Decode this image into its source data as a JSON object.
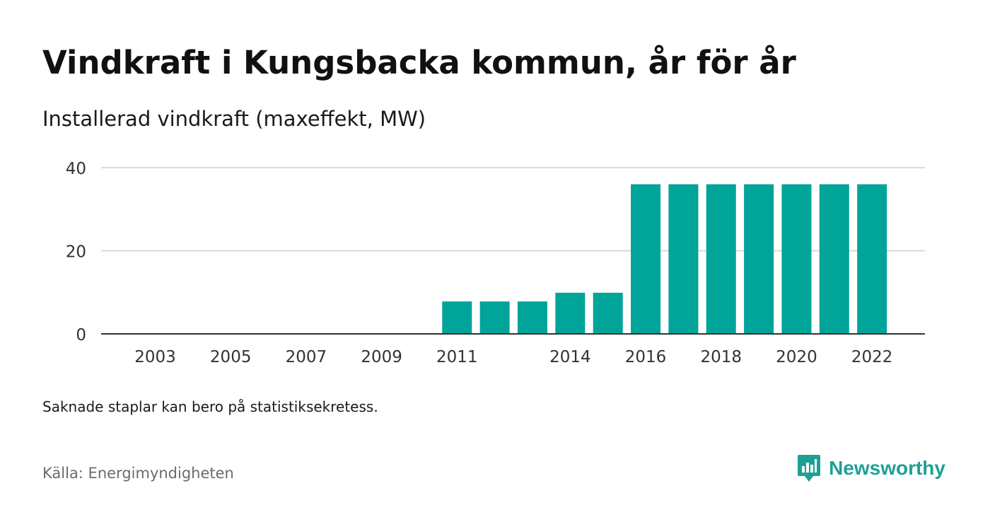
{
  "title": "Vindkraft i Kungsbacka kommun, år för år",
  "subtitle": "Installerad vindkraft (maxeffekt, MW)",
  "note": "Saknade staplar kan bero på statistiksekretess.",
  "source": "Källa: Energimyndigheten",
  "brand": {
    "name": "Newsworthy",
    "icon": "newsworthy-logo-icon",
    "color": "#1fa096"
  },
  "chart_data": {
    "type": "bar",
    "title": "",
    "xlabel": "",
    "ylabel": "",
    "categories": [
      "2003",
      "2004",
      "2005",
      "2006",
      "2007",
      "2008",
      "2009",
      "2010",
      "2011",
      "2012",
      "2013",
      "2014",
      "2015",
      "2016",
      "2017",
      "2018",
      "2019",
      "2020",
      "2021",
      "2022"
    ],
    "values": [
      0,
      0,
      0,
      0,
      0,
      0,
      0,
      0,
      7.8,
      7.8,
      7.8,
      9.9,
      9.9,
      36,
      36,
      36,
      36,
      36,
      36,
      36
    ],
    "x_tick_labels": [
      "2003",
      "2005",
      "2007",
      "2009",
      "2011",
      "2014",
      "2016",
      "2018",
      "2020",
      "2022"
    ],
    "y_ticks": [
      0,
      20,
      40
    ],
    "ylim": [
      0,
      40
    ],
    "grid": true,
    "legend": "none",
    "bar_color": "#00a499"
  }
}
